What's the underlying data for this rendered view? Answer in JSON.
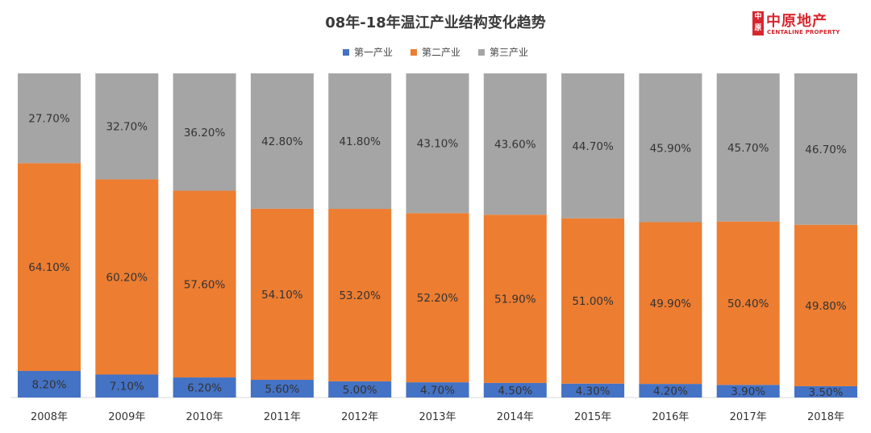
{
  "logo": {
    "mark": "中原",
    "cn": "中原地产",
    "en": "CENTALINE PROPERTY"
  },
  "chart_data": {
    "type": "bar",
    "stacked": true,
    "normalized": true,
    "title": "08年-18年温江产业结构变化趋势",
    "categories": [
      "2008年",
      "2009年",
      "2010年",
      "2011年",
      "2012年",
      "2013年",
      "2014年",
      "2015年",
      "2016年",
      "2017年",
      "2018年"
    ],
    "series": [
      {
        "name": "第一产业",
        "color": "#4472c4",
        "values": [
          8.2,
          7.1,
          6.2,
          5.6,
          5.0,
          4.7,
          4.5,
          4.3,
          4.2,
          3.9,
          3.5
        ],
        "labels": [
          "8.20%",
          "7.10%",
          "6.20%",
          "5.60%",
          "5.00%",
          "4.70%",
          "4.50%",
          "4.30%",
          "4.20%",
          "3.90%",
          "3.50%"
        ]
      },
      {
        "name": "第二产业",
        "color": "#ed7d31",
        "values": [
          64.1,
          60.2,
          57.6,
          54.1,
          53.2,
          52.2,
          51.9,
          51.0,
          49.9,
          50.4,
          49.8
        ],
        "labels": [
          "64.10%",
          "60.20%",
          "57.60%",
          "54.10%",
          "53.20%",
          "52.20%",
          "51.90%",
          "51.00%",
          "49.90%",
          "50.40%",
          "49.80%"
        ]
      },
      {
        "name": "第三产业",
        "color": "#a5a5a5",
        "values": [
          27.7,
          32.7,
          36.2,
          42.8,
          41.8,
          43.1,
          43.6,
          44.7,
          45.9,
          45.7,
          46.7
        ],
        "labels": [
          "27.70%",
          "32.70%",
          "36.20%",
          "42.80%",
          "41.80%",
          "43.10%",
          "43.60%",
          "44.70%",
          "45.90%",
          "45.70%",
          "46.70%"
        ]
      }
    ],
    "ylim": [
      0,
      100
    ],
    "legend_position": "top-center",
    "grid": false
  }
}
